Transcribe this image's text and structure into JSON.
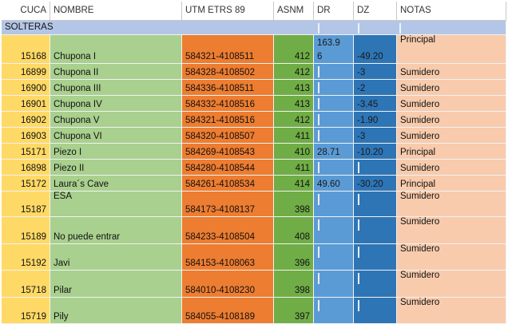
{
  "table": {
    "header": [
      "CUCA",
      "NOMBRE",
      "UTM ETRS 89",
      "ASNM",
      "DR",
      "DZ",
      "NOTAS"
    ],
    "section": "SOLTERAS",
    "rows": [
      [
        "15168",
        "Chupona I",
        "584321-4108511",
        "412",
        "163.96",
        "-49.20",
        "Principal"
      ],
      [
        "16899",
        "Chupona II",
        "584328-4108502",
        "412",
        null,
        "-3",
        "Sumidero"
      ],
      [
        "16900",
        "Chupona III",
        "584336-4108511",
        "413",
        null,
        "-2",
        "Sumidero"
      ],
      [
        "16901",
        "Chupona IV",
        "584332-4108516",
        "413",
        null,
        "-3.45",
        "Sumidero"
      ],
      [
        "16902",
        "Chupona V",
        "584321-4108516",
        "412",
        null,
        "-1.90",
        "Sumidero"
      ],
      [
        "16903",
        "Chupona VI",
        "584320-4108507",
        "411",
        null,
        "-3",
        "Sumidero"
      ],
      [
        "15171",
        "Piezo I",
        "584269-4108543",
        "410",
        "28.71",
        "-10.20",
        "Principal"
      ],
      [
        "16898",
        "Piezo II",
        "584280-4108544",
        "411",
        null,
        null,
        "Sumidero"
      ],
      [
        "15172",
        "Laura´s Cave",
        "584261-4108534",
        "414",
        "49.60",
        "-30.20",
        "Principal"
      ],
      [
        "15187",
        "ESA",
        "584173-4108137",
        "398",
        null,
        null,
        "Sumidero"
      ],
      [
        "15189",
        "No puede entrar",
        "584233-4108504",
        "408",
        null,
        null,
        "Sumidero"
      ],
      [
        "15192",
        "Javi",
        "584153-4108063",
        "396",
        null,
        null,
        "Sumidero"
      ],
      [
        "15718",
        "Pilar",
        "584010-4108230",
        "398",
        null,
        null,
        "Sumidero"
      ],
      [
        "15719",
        "Pily",
        "584055-4108189",
        "397",
        null,
        null,
        "Sumidero"
      ]
    ]
  }
}
